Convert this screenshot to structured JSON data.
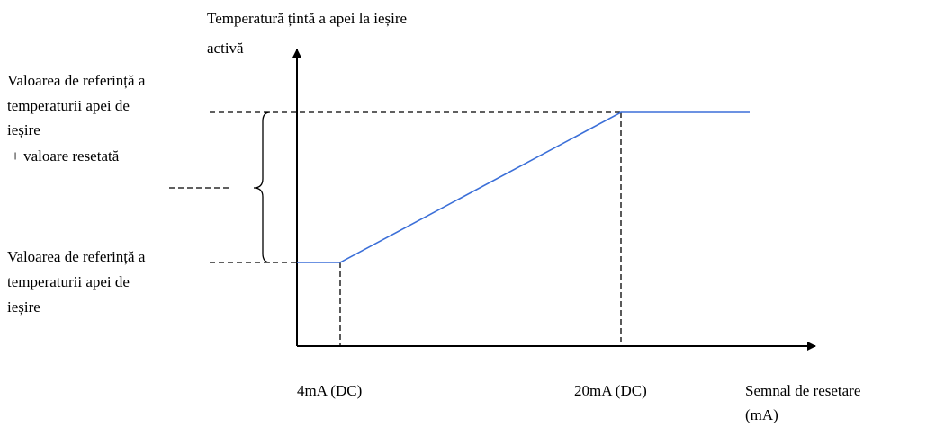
{
  "y_axis_label": [
    "Temperatură țintă a apei la ieșire",
    "activă"
  ],
  "upper_label": [
    "Valoarea de referință a",
    "temperaturii apei de",
    "ieșire",
    " + valoare resetată"
  ],
  "lower_label": [
    "Valoarea de referință a",
    "temperaturii apei de",
    "ieșire"
  ],
  "x_marks": [
    "4mA (DC)",
    "20mA (DC)"
  ],
  "x_axis_label": [
    "Semnal de resetare",
    "(mA)"
  ]
}
